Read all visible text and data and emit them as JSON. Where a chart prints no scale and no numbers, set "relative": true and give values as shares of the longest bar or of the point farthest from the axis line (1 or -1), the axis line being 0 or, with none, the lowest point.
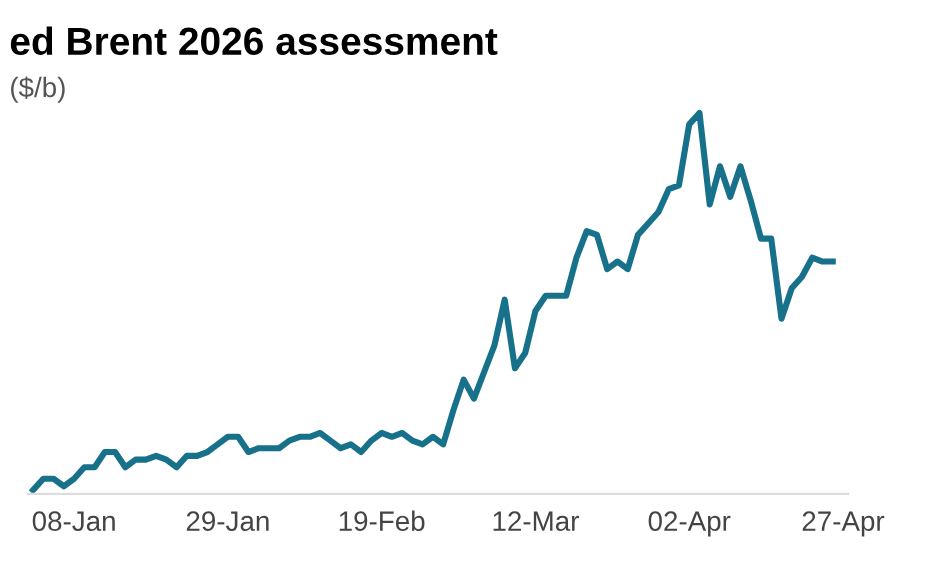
{
  "chart_data": {
    "type": "line",
    "title": "ed Brent 2026 assessment",
    "subtitle": "($/b)",
    "relative": true,
    "categories": [
      null,
      null,
      null,
      null,
      "08-Jan",
      null,
      null,
      null,
      null,
      null,
      null,
      null,
      null,
      null,
      null,
      null,
      null,
      null,
      null,
      "29-Jan",
      null,
      null,
      null,
      null,
      null,
      null,
      null,
      null,
      null,
      null,
      null,
      null,
      null,
      null,
      "19-Feb",
      null,
      null,
      null,
      null,
      null,
      null,
      null,
      null,
      null,
      null,
      null,
      null,
      null,
      null,
      "12-Mar",
      null,
      null,
      null,
      null,
      null,
      null,
      null,
      null,
      null,
      null,
      null,
      null,
      null,
      null,
      "02-Apr",
      null,
      null,
      null,
      null,
      null,
      null,
      null,
      null,
      null,
      null,
      null,
      null,
      null,
      null,
      "27-Apr"
    ],
    "series": [
      {
        "color": "#17718a",
        "values": [
          0.01,
          0.04,
          0.04,
          0.02,
          0.04,
          0.07,
          0.07,
          0.11,
          0.11,
          0.07,
          0.09,
          0.09,
          0.1,
          0.09,
          0.07,
          0.1,
          0.1,
          0.11,
          0.13,
          0.15,
          0.15,
          0.11,
          0.12,
          0.12,
          0.12,
          0.14,
          0.15,
          0.15,
          0.16,
          0.14,
          0.12,
          0.13,
          0.11,
          0.14,
          0.16,
          0.15,
          0.16,
          0.14,
          0.13,
          0.15,
          0.13,
          0.22,
          0.3,
          0.25,
          0.32,
          0.39,
          0.51,
          0.33,
          0.37,
          0.48,
          0.52,
          0.52,
          0.52,
          0.62,
          0.69,
          0.68,
          0.59,
          0.61,
          0.59,
          0.68,
          0.71,
          0.74,
          0.8,
          0.81,
          0.97,
          1,
          0.76,
          0.86,
          0.78,
          0.86,
          0.77,
          0.67,
          0.67,
          0.46,
          0.54,
          0.57,
          0.62,
          0.61,
          0.61,
          null
        ]
      }
    ],
    "grid": false,
    "marker": "none",
    "line_style": "solid"
  }
}
